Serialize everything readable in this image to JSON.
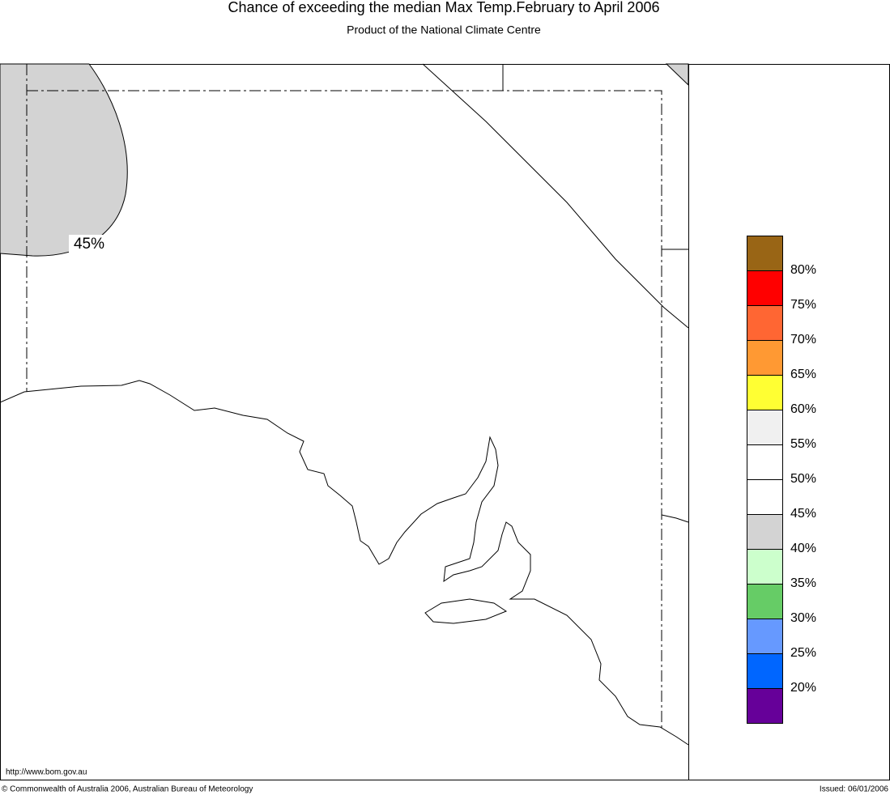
{
  "header": {
    "title": "Chance of exceeding the median Max Temp.February to April 2006",
    "subtitle": "Product of the National Climate Centre"
  },
  "map": {
    "contour_label": "45%",
    "url": "http://www.bom.gov.au"
  },
  "legend": {
    "colors": [
      "#996515",
      "#ff0000",
      "#ff6633",
      "#ff9933",
      "#ffff33",
      "#f0f0f0",
      "#ffffff",
      "#ffffff",
      "#d3d3d3",
      "#ccffcc",
      "#66cc66",
      "#6699ff",
      "#0066ff",
      "#660099"
    ],
    "labels": [
      "80%",
      "75%",
      "70%",
      "65%",
      "60%",
      "55%",
      "50%",
      "45%",
      "40%",
      "35%",
      "30%",
      "25%",
      "20%"
    ]
  },
  "footer": {
    "copyright": "© Commonwealth of Australia 2006, Australian Bureau of Meteorology",
    "issued": "Issued: 06/01/2006"
  }
}
